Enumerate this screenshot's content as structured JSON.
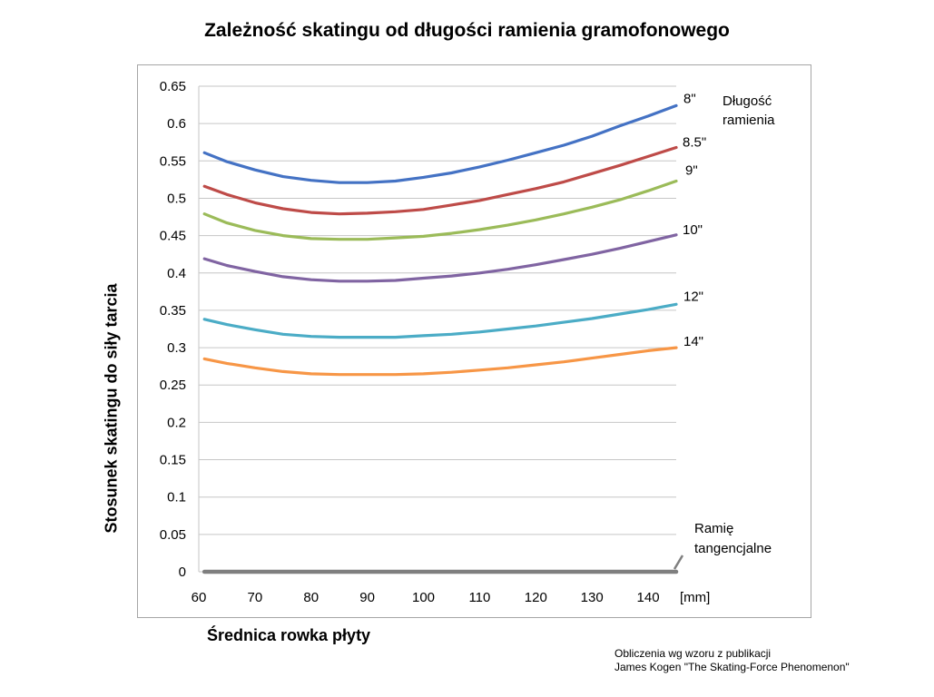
{
  "chart_data": {
    "type": "line",
    "title": "Zależność skatingu od długości ramienia gramofonowego",
    "xlabel": "Średnica rowka płyty",
    "xunit": "[mm]",
    "ylabel": "Stosunek skatingu do siły tarcia",
    "xlim": [
      60,
      145
    ],
    "ylim": [
      0,
      0.65
    ],
    "xticks": [
      60,
      70,
      80,
      90,
      100,
      110,
      120,
      130,
      140
    ],
    "yticks": [
      0,
      0.05,
      0.1,
      0.15,
      0.2,
      0.25,
      0.3,
      0.35,
      0.4,
      0.45,
      0.5,
      0.55,
      0.6,
      0.65
    ],
    "ytick_labels": [
      "0",
      "0.05",
      "0.1",
      "0.15",
      "0.2",
      "0.25",
      "0.3",
      "0.35",
      "0.4",
      "0.45",
      "0.5",
      "0.55",
      "0.6",
      "0.65"
    ],
    "grid": "horizontal",
    "legend_title": "Długość ramienia",
    "x": [
      61,
      65,
      70,
      75,
      80,
      85,
      90,
      95,
      100,
      105,
      110,
      115,
      120,
      125,
      130,
      135,
      140,
      145
    ],
    "series": [
      {
        "name": "8\"",
        "color": "#4472c4",
        "values": [
          0.561,
          0.549,
          0.538,
          0.529,
          0.524,
          0.521,
          0.521,
          0.523,
          0.528,
          0.534,
          0.542,
          0.551,
          0.561,
          0.571,
          0.583,
          0.597,
          0.61,
          0.624
        ]
      },
      {
        "name": "8.5\"",
        "color": "#be4b48",
        "values": [
          0.516,
          0.505,
          0.494,
          0.486,
          0.481,
          0.479,
          0.48,
          0.482,
          0.485,
          0.491,
          0.497,
          0.505,
          0.513,
          0.522,
          0.533,
          0.544,
          0.556,
          0.568
        ]
      },
      {
        "name": "9\"",
        "color": "#9bbb59",
        "values": [
          0.479,
          0.467,
          0.457,
          0.45,
          0.446,
          0.445,
          0.445,
          0.447,
          0.449,
          0.453,
          0.458,
          0.464,
          0.471,
          0.479,
          0.488,
          0.498,
          0.51,
          0.523
        ]
      },
      {
        "name": "10\"",
        "color": "#8064a2",
        "values": [
          0.419,
          0.41,
          0.402,
          0.395,
          0.391,
          0.389,
          0.389,
          0.39,
          0.393,
          0.396,
          0.4,
          0.405,
          0.411,
          0.418,
          0.425,
          0.433,
          0.442,
          0.451
        ]
      },
      {
        "name": "12\"",
        "color": "#4bacc6",
        "values": [
          0.338,
          0.331,
          0.324,
          0.318,
          0.315,
          0.314,
          0.314,
          0.314,
          0.316,
          0.318,
          0.321,
          0.325,
          0.329,
          0.334,
          0.339,
          0.345,
          0.351,
          0.358
        ]
      },
      {
        "name": "14\"",
        "color": "#f79646",
        "values": [
          0.285,
          0.279,
          0.273,
          0.268,
          0.265,
          0.264,
          0.264,
          0.264,
          0.265,
          0.267,
          0.27,
          0.273,
          0.277,
          0.281,
          0.286,
          0.291,
          0.296,
          0.3
        ]
      },
      {
        "name": "Ramię tangencjalne",
        "color": "#7f7f7f",
        "values": [
          0,
          0,
          0,
          0,
          0,
          0,
          0,
          0,
          0,
          0,
          0,
          0,
          0,
          0,
          0,
          0,
          0,
          0
        ]
      }
    ]
  },
  "annotations": {
    "tangential_line1": "Ramię",
    "tangential_line2": "tangencjalne",
    "legend_title_line1": "Długość",
    "legend_title_line2": "ramienia"
  },
  "source": {
    "line1": "Obliczenia wg wzoru z publikacji",
    "line2": "James Kogen \"The Skating-Force Phenomenon\""
  }
}
